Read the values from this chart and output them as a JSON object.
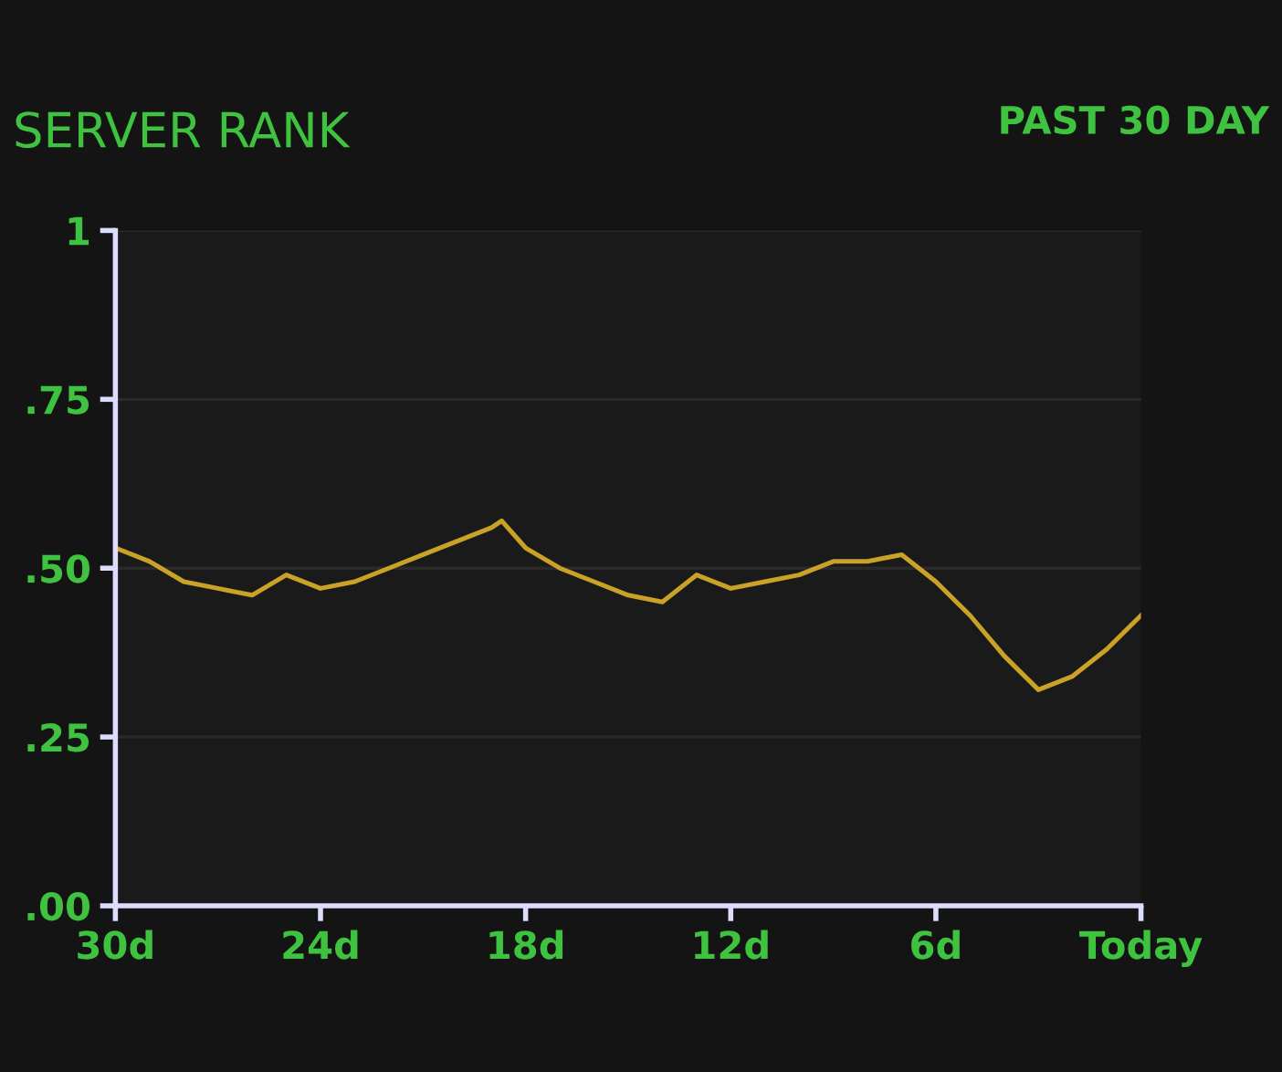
{
  "chart_data": {
    "type": "line",
    "title": "SERVER RANK",
    "subtitle": "PAST 30 DAY",
    "x": [
      -30,
      -29,
      -28,
      -27,
      -26,
      -25,
      -24,
      -23,
      -22,
      -21,
      -20,
      -19,
      -18.7,
      -18,
      -17,
      -16,
      -15,
      -14,
      -13,
      -12,
      -11,
      -10,
      -9,
      -8,
      -7,
      -6,
      -5,
      -4,
      -3,
      -2,
      -1,
      0
    ],
    "series": [
      {
        "color": "#c9a227",
        "values": [
          0.53,
          0.51,
          0.48,
          0.47,
          0.46,
          0.49,
          0.47,
          0.48,
          0.5,
          0.52,
          0.54,
          0.56,
          0.57,
          0.53,
          0.5,
          0.48,
          0.46,
          0.45,
          0.49,
          0.47,
          0.48,
          0.49,
          0.51,
          0.51,
          0.52,
          0.48,
          0.43,
          0.37,
          0.32,
          0.34,
          0.38,
          0.43
        ]
      }
    ],
    "xlim": [
      -30,
      0
    ],
    "xticks": [
      {
        "value": -30,
        "label": "30d"
      },
      {
        "value": -24,
        "label": "24d"
      },
      {
        "value": -18,
        "label": "18d"
      },
      {
        "value": -12,
        "label": "12d"
      },
      {
        "value": -6,
        "label": "6d"
      },
      {
        "value": 0,
        "label": "Today"
      }
    ],
    "ylim": [
      0,
      1
    ],
    "yticks": [
      1,
      {
        "value": 0.75,
        "label": ".75"
      },
      {
        "value": 0.5,
        "label": ".50"
      },
      {
        "value": 0.25,
        "label": ".25"
      },
      {
        "value": 0,
        "label": ".00"
      }
    ],
    "grid": "y",
    "marker": "none",
    "line_style": "solid",
    "legend": false
  }
}
